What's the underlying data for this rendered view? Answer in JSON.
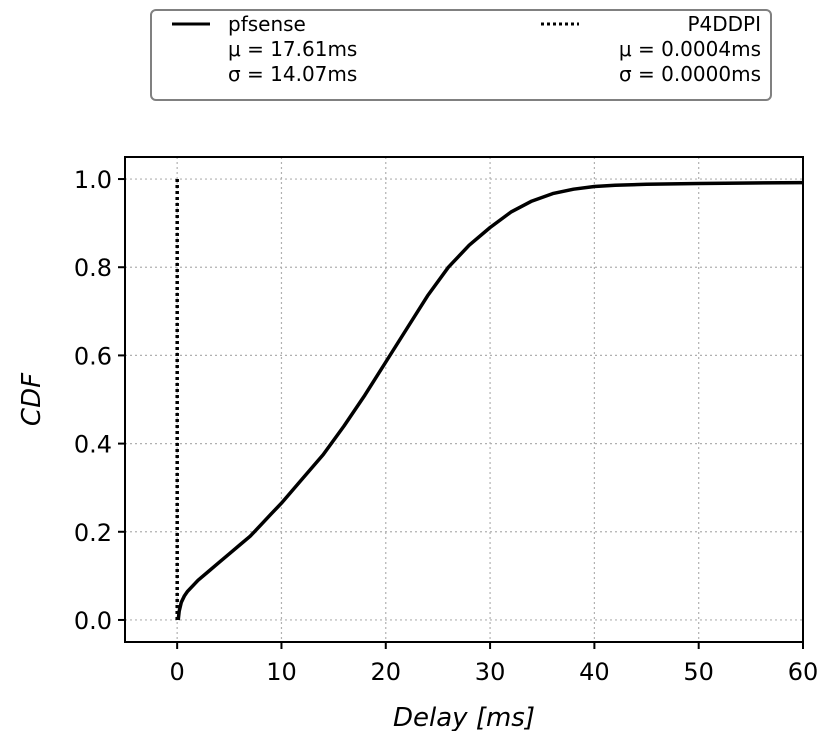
{
  "chart_data": {
    "type": "line",
    "title": "",
    "xlabel": "Delay [ms]",
    "ylabel": "CDF",
    "xlim": [
      -5,
      60
    ],
    "ylim": [
      -0.05,
      1.05
    ],
    "xticks": [
      0,
      10,
      20,
      30,
      40,
      50,
      60
    ],
    "yticks": [
      0.0,
      0.2,
      0.4,
      0.6,
      0.8,
      1.0
    ],
    "xtick_labels": [
      "0",
      "10",
      "20",
      "30",
      "40",
      "50",
      "60"
    ],
    "ytick_labels": [
      "0.0",
      "0.2",
      "0.4",
      "0.6",
      "0.8",
      "1.0"
    ],
    "grid": true,
    "legend_position": "above plot, outside axes",
    "series": [
      {
        "name": "pfsense",
        "line_style": "solid",
        "color": "#000000",
        "stats": [
          "μ = 17.61ms",
          "σ = 14.07ms"
        ],
        "x": [
          0.1,
          0.2,
          0.4,
          0.7,
          1.0,
          2.0,
          3.0,
          4.0,
          5.0,
          6.0,
          7.0,
          8.0,
          9.0,
          10.0,
          12.0,
          14.0,
          16.0,
          18.0,
          20.0,
          22.0,
          24.0,
          26.0,
          28.0,
          30.0,
          32.0,
          34.0,
          36.0,
          38.0,
          40.0,
          42.0,
          45.0,
          50.0,
          55.0,
          60.0
        ],
        "y": [
          0.0,
          0.02,
          0.04,
          0.055,
          0.065,
          0.09,
          0.11,
          0.13,
          0.15,
          0.17,
          0.19,
          0.215,
          0.24,
          0.265,
          0.32,
          0.375,
          0.44,
          0.51,
          0.585,
          0.66,
          0.735,
          0.8,
          0.85,
          0.89,
          0.925,
          0.95,
          0.967,
          0.977,
          0.983,
          0.986,
          0.988,
          0.99,
          0.991,
          0.992
        ]
      },
      {
        "name": "P4DDPI",
        "line_style": "dotted",
        "color": "#000000",
        "stats": [
          "μ = 0.0004ms",
          "σ = 0.0000ms"
        ],
        "x": [
          0.0,
          0.0
        ],
        "y": [
          0.0,
          1.0
        ]
      }
    ]
  }
}
